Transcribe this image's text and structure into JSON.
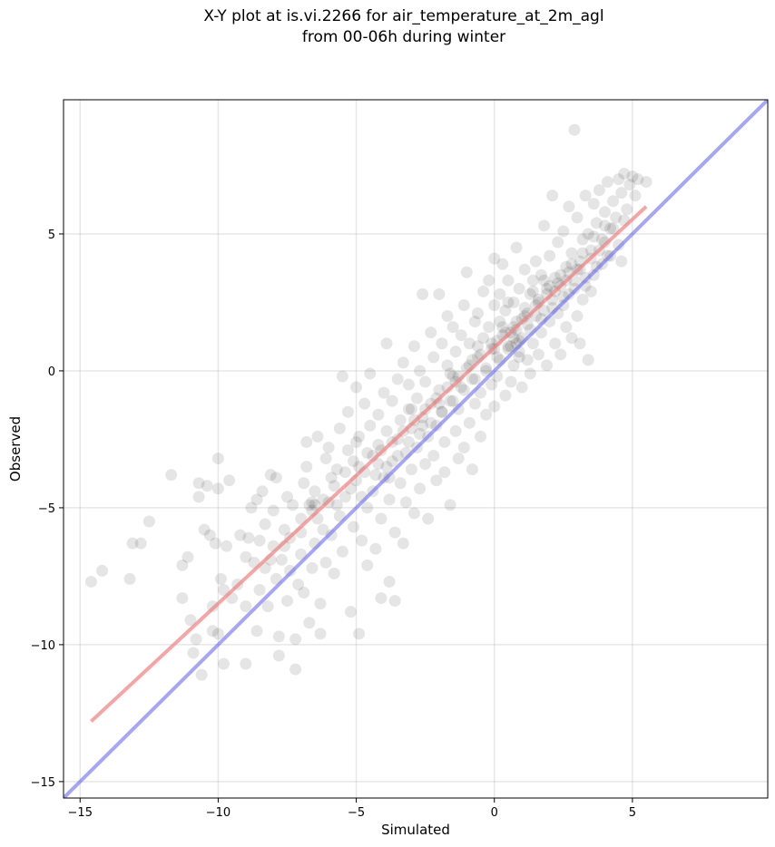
{
  "chart_data": {
    "type": "scatter",
    "title_line1": "X-Y plot at is.vi.2266 for air_temperature_at_2m_agl",
    "title_line2": "from 00-06h during winter",
    "xlabel": "Simulated",
    "ylabel": "Observed",
    "xlim": [
      -15.6,
      9.9
    ],
    "ylim": [
      -15.6,
      9.9
    ],
    "xticks": [
      -15,
      -10,
      -5,
      0,
      5
    ],
    "yticks": [
      -15,
      -10,
      -5,
      0,
      5
    ],
    "xtick_labels": [
      "−15",
      "−10",
      "−5",
      "0",
      "5"
    ],
    "ytick_labels": [
      "−15",
      "−10",
      "−5",
      "0",
      "5"
    ],
    "grid": true,
    "point_color": "#000000",
    "point_alpha": 0.1,
    "fit_line": {
      "color": "#f08080",
      "x": [
        -14.6,
        5.5
      ],
      "y": [
        -12.8,
        6.0
      ]
    },
    "identity_line": {
      "color": "#6a6af0",
      "x": [
        -15.6,
        9.9
      ],
      "y": [
        -15.6,
        9.9
      ]
    },
    "points": [
      [
        -14.6,
        -7.7
      ],
      [
        -14.2,
        -7.3
      ],
      [
        -13.2,
        -7.6
      ],
      [
        -13.1,
        -6.3
      ],
      [
        -12.8,
        -6.3
      ],
      [
        -12.5,
        -5.5
      ],
      [
        -11.7,
        -3.8
      ],
      [
        -11.3,
        -8.3
      ],
      [
        -11.3,
        -7.1
      ],
      [
        -11.1,
        -6.8
      ],
      [
        -11.0,
        -9.1
      ],
      [
        -10.9,
        -10.3
      ],
      [
        -10.8,
        -9.8
      ],
      [
        -10.7,
        -4.1
      ],
      [
        -10.7,
        -4.6
      ],
      [
        -10.6,
        -11.1
      ],
      [
        -10.5,
        -5.8
      ],
      [
        -10.4,
        -4.2
      ],
      [
        -10.3,
        -6.0
      ],
      [
        -10.2,
        -8.6
      ],
      [
        -10.2,
        -9.5
      ],
      [
        -10.1,
        -6.3
      ],
      [
        -10.0,
        -4.3
      ],
      [
        -10.0,
        -9.6
      ],
      [
        -10.0,
        -3.2
      ],
      [
        -9.8,
        -8.0
      ],
      [
        -9.9,
        -7.6
      ],
      [
        -9.8,
        -10.7
      ],
      [
        -9.7,
        -6.4
      ],
      [
        -9.6,
        -4.0
      ],
      [
        -9.5,
        -8.3
      ],
      [
        -9.3,
        -7.8
      ],
      [
        -9.2,
        -6.0
      ],
      [
        -9.0,
        -6.8
      ],
      [
        -9.0,
        -8.6
      ],
      [
        -9.0,
        -10.7
      ],
      [
        -8.9,
        -6.1
      ],
      [
        -8.7,
        -7.0
      ],
      [
        -8.6,
        -4.7
      ],
      [
        -8.6,
        -9.5
      ],
      [
        -8.5,
        -8.0
      ],
      [
        -8.5,
        -6.2
      ],
      [
        -8.4,
        -4.4
      ],
      [
        -8.3,
        -7.2
      ],
      [
        -8.3,
        -5.6
      ],
      [
        -8.2,
        -8.6
      ],
      [
        -8.1,
        -3.8
      ],
      [
        -8.0,
        -6.4
      ],
      [
        -8.0,
        -5.1
      ],
      [
        -7.9,
        -3.9
      ],
      [
        -7.9,
        -7.6
      ],
      [
        -7.8,
        -10.4
      ],
      [
        -7.8,
        -9.7
      ],
      [
        -7.7,
        -6.9
      ],
      [
        -7.6,
        -5.8
      ],
      [
        -7.5,
        -4.6
      ],
      [
        -7.5,
        -8.4
      ],
      [
        -7.4,
        -7.3
      ],
      [
        -7.4,
        -6.1
      ],
      [
        -7.3,
        -4.9
      ],
      [
        -7.2,
        -9.8
      ],
      [
        -7.2,
        -10.9
      ],
      [
        -7.1,
        -7.8
      ],
      [
        -7.0,
        -5.4
      ],
      [
        -7.0,
        -6.7
      ],
      [
        -6.9,
        -4.1
      ],
      [
        -6.9,
        -8.1
      ],
      [
        -6.8,
        -3.5
      ],
      [
        -6.8,
        -2.6
      ],
      [
        -6.7,
        -9.2
      ],
      [
        -6.6,
        -7.2
      ],
      [
        -6.6,
        -5.1
      ],
      [
        -6.5,
        -6.3
      ],
      [
        -6.5,
        -4.4
      ],
      [
        -6.4,
        -2.4
      ],
      [
        -6.3,
        -8.5
      ],
      [
        -6.3,
        -9.6
      ],
      [
        -6.2,
        -5.8
      ],
      [
        -6.1,
        -3.2
      ],
      [
        -6.1,
        -7.0
      ],
      [
        -6.0,
        -4.8
      ],
      [
        -6.0,
        -2.8
      ],
      [
        -5.9,
        -6.0
      ],
      [
        -5.8,
        -4.2
      ],
      [
        -5.8,
        -7.4
      ],
      [
        -5.7,
        -3.6
      ],
      [
        -5.6,
        -2.1
      ],
      [
        -5.6,
        -5.3
      ],
      [
        -5.5,
        -0.2
      ],
      [
        -5.5,
        -6.6
      ],
      [
        -5.4,
        -4.6
      ],
      [
        -5.3,
        -2.9
      ],
      [
        -5.3,
        -1.5
      ],
      [
        -5.2,
        -8.8
      ],
      [
        -5.1,
        -3.3
      ],
      [
        -5.1,
        -5.7
      ],
      [
        -5.0,
        -0.6
      ],
      [
        -5.0,
        -4.0
      ],
      [
        -4.9,
        -2.4
      ],
      [
        -4.9,
        -9.6
      ],
      [
        -4.8,
        -6.2
      ],
      [
        -4.7,
        -1.2
      ],
      [
        -4.7,
        -3.7
      ],
      [
        -4.6,
        -5.0
      ],
      [
        -4.6,
        -7.1
      ],
      [
        -4.5,
        -2.0
      ],
      [
        -4.5,
        -0.1
      ],
      [
        -4.4,
        -4.4
      ],
      [
        -4.4,
        -3.1
      ],
      [
        -4.3,
        -6.5
      ],
      [
        -4.2,
        -1.6
      ],
      [
        -4.2,
        -2.7
      ],
      [
        -4.1,
        -8.3
      ],
      [
        -4.1,
        -5.4
      ],
      [
        -4.0,
        -0.8
      ],
      [
        -4.0,
        -3.9
      ],
      [
        -3.9,
        1.0
      ],
      [
        -3.9,
        -2.2
      ],
      [
        -3.8,
        -4.7
      ],
      [
        -3.8,
        -7.7
      ],
      [
        -3.7,
        -1.1
      ],
      [
        -3.7,
        -3.3
      ],
      [
        -3.6,
        -8.4
      ],
      [
        -3.6,
        -5.9
      ],
      [
        -3.5,
        -0.3
      ],
      [
        -3.5,
        -2.5
      ],
      [
        -3.4,
        -4.1
      ],
      [
        -3.4,
        -1.8
      ],
      [
        -3.3,
        -6.3
      ],
      [
        -3.3,
        0.3
      ],
      [
        -3.2,
        -3.0
      ],
      [
        -3.2,
        -4.8
      ],
      [
        -3.1,
        -1.4
      ],
      [
        -3.1,
        -0.5
      ],
      [
        -3.0,
        -2.1
      ],
      [
        -3.0,
        -3.6
      ],
      [
        -2.9,
        0.9
      ],
      [
        -2.9,
        -5.2
      ],
      [
        -2.8,
        -1.0
      ],
      [
        -2.8,
        -2.8
      ],
      [
        -2.7,
        -4.3
      ],
      [
        -2.7,
        0.0
      ],
      [
        -2.6,
        -1.7
      ],
      [
        -2.6,
        2.8
      ],
      [
        -2.5,
        -3.4
      ],
      [
        -2.5,
        -0.4
      ],
      [
        -2.4,
        -2.4
      ],
      [
        -2.4,
        -5.4
      ],
      [
        -2.3,
        1.4
      ],
      [
        -2.3,
        -1.2
      ],
      [
        -2.2,
        -3.1
      ],
      [
        -2.2,
        0.5
      ],
      [
        -2.1,
        -2.0
      ],
      [
        -2.1,
        -4.0
      ],
      [
        -2.0,
        2.8
      ],
      [
        -2.0,
        -0.7
      ],
      [
        -1.9,
        -1.5
      ],
      [
        -1.9,
        1.0
      ],
      [
        -1.8,
        -3.7
      ],
      [
        -1.8,
        -2.6
      ],
      [
        -1.7,
        0.2
      ],
      [
        -1.7,
        2.0
      ],
      [
        -1.6,
        -1.1
      ],
      [
        -1.6,
        -4.9
      ],
      [
        -1.5,
        -0.2
      ],
      [
        -1.5,
        1.6
      ],
      [
        -1.4,
        -2.2
      ],
      [
        -1.4,
        0.7
      ],
      [
        -1.3,
        -3.2
      ],
      [
        -1.3,
        -1.4
      ],
      [
        -1.2,
        1.3
      ],
      [
        -1.2,
        -0.6
      ],
      [
        -1.1,
        2.4
      ],
      [
        -1.1,
        -2.8
      ],
      [
        -1.0,
        0.1
      ],
      [
        -1.0,
        3.6
      ],
      [
        -0.9,
        -1.9
      ],
      [
        -0.9,
        1.0
      ],
      [
        -0.8,
        -0.3
      ],
      [
        -0.8,
        -3.6
      ],
      [
        -0.7,
        1.8
      ],
      [
        -0.7,
        -1.2
      ],
      [
        -0.6,
        0.5
      ],
      [
        -0.6,
        2.1
      ],
      [
        -0.5,
        -2.4
      ],
      [
        -0.5,
        -0.8
      ],
      [
        -0.4,
        1.2
      ],
      [
        -0.4,
        2.9
      ],
      [
        -0.3,
        0.0
      ],
      [
        -0.3,
        -1.6
      ],
      [
        -0.2,
        1.6
      ],
      [
        -0.2,
        3.3
      ],
      [
        -0.1,
        -0.5
      ],
      [
        -0.1,
        0.8
      ],
      [
        0.0,
        2.4
      ],
      [
        0.0,
        -1.3
      ],
      [
        0.0,
        4.1
      ],
      [
        0.1,
        1.1
      ],
      [
        0.1,
        -0.2
      ],
      [
        0.2,
        2.8
      ],
      [
        0.2,
        0.4
      ],
      [
        0.3,
        3.9
      ],
      [
        0.3,
        1.6
      ],
      [
        0.4,
        -0.9
      ],
      [
        0.4,
        2.2
      ],
      [
        0.5,
        0.9
      ],
      [
        0.5,
        3.3
      ],
      [
        0.6,
        1.4
      ],
      [
        0.6,
        -0.4
      ],
      [
        0.7,
        2.5
      ],
      [
        0.7,
        0.2
      ],
      [
        0.8,
        4.5
      ],
      [
        0.8,
        1.8
      ],
      [
        0.9,
        0.7
      ],
      [
        0.9,
        3.0
      ],
      [
        1.0,
        1.2
      ],
      [
        1.0,
        -0.6
      ],
      [
        1.1,
        2.3
      ],
      [
        1.1,
        3.7
      ],
      [
        1.2,
        0.4
      ],
      [
        1.2,
        1.7
      ],
      [
        1.3,
        2.8
      ],
      [
        1.3,
        -0.1
      ],
      [
        1.4,
        3.3
      ],
      [
        1.4,
        1.0
      ],
      [
        1.5,
        2.0
      ],
      [
        1.5,
        4.0
      ],
      [
        1.6,
        0.6
      ],
      [
        1.6,
        2.6
      ],
      [
        1.7,
        3.5
      ],
      [
        1.7,
        1.4
      ],
      [
        1.8,
        5.3
      ],
      [
        1.8,
        2.2
      ],
      [
        1.9,
        0.2
      ],
      [
        1.9,
        3.0
      ],
      [
        2.0,
        1.8
      ],
      [
        2.0,
        4.2
      ],
      [
        2.1,
        2.6
      ],
      [
        2.1,
        6.4
      ],
      [
        2.2,
        1.0
      ],
      [
        2.2,
        3.4
      ],
      [
        2.3,
        2.1
      ],
      [
        2.3,
        4.7
      ],
      [
        2.4,
        0.6
      ],
      [
        2.4,
        3.1
      ],
      [
        2.5,
        2.4
      ],
      [
        2.5,
        5.1
      ],
      [
        2.6,
        1.6
      ],
      [
        2.6,
        3.8
      ],
      [
        2.7,
        2.8
      ],
      [
        2.7,
        6.0
      ],
      [
        2.8,
        1.2
      ],
      [
        2.8,
        4.3
      ],
      [
        2.9,
        3.3
      ],
      [
        2.9,
        8.8
      ],
      [
        3.0,
        2.0
      ],
      [
        3.0,
        5.6
      ],
      [
        3.1,
        3.7
      ],
      [
        3.1,
        1.0
      ],
      [
        3.2,
        4.8
      ],
      [
        3.2,
        2.6
      ],
      [
        3.3,
        6.4
      ],
      [
        3.3,
        3.1
      ],
      [
        3.4,
        0.4
      ],
      [
        3.4,
        5.0
      ],
      [
        3.5,
        4.1
      ],
      [
        3.5,
        2.9
      ],
      [
        3.6,
        6.1
      ],
      [
        3.6,
        3.5
      ],
      [
        3.7,
        5.4
      ],
      [
        3.8,
        4.4
      ],
      [
        3.8,
        6.6
      ],
      [
        3.9,
        3.9
      ],
      [
        4.0,
        5.8
      ],
      [
        4.0,
        4.7
      ],
      [
        4.1,
        6.9
      ],
      [
        4.2,
        5.2
      ],
      [
        4.2,
        4.2
      ],
      [
        4.3,
        6.2
      ],
      [
        4.4,
        5.6
      ],
      [
        4.5,
        7.0
      ],
      [
        4.6,
        4.0
      ],
      [
        4.6,
        6.5
      ],
      [
        4.7,
        7.2
      ],
      [
        4.8,
        5.9
      ],
      [
        4.9,
        6.8
      ],
      [
        5.0,
        7.1
      ],
      [
        5.1,
        6.4
      ],
      [
        5.2,
        7.0
      ],
      [
        5.5,
        6.9
      ],
      [
        -8.8,
        -5.0
      ],
      [
        -8.1,
        -6.9
      ],
      [
        -7.6,
        -6.4
      ],
      [
        -7.0,
        -5.9
      ],
      [
        -6.7,
        -4.9
      ],
      [
        -6.4,
        -5.4
      ],
      [
        -6.2,
        -4.7
      ],
      [
        -5.9,
        -3.9
      ],
      [
        -5.7,
        -4.9
      ],
      [
        -5.4,
        -3.7
      ],
      [
        -5.2,
        -4.3
      ],
      [
        -4.9,
        -3.5
      ],
      [
        -4.8,
        -4.6
      ],
      [
        -4.6,
        -3.0
      ],
      [
        -4.3,
        -3.8
      ],
      [
        -4.1,
        -2.9
      ],
      [
        -3.9,
        -3.5
      ],
      [
        -3.7,
        -2.6
      ],
      [
        -3.5,
        -3.1
      ],
      [
        -3.3,
        -2.2
      ],
      [
        -3.1,
        -2.6
      ],
      [
        -2.9,
        -1.8
      ],
      [
        -2.7,
        -2.3
      ],
      [
        -2.5,
        -1.4
      ],
      [
        -2.3,
        -1.9
      ],
      [
        -2.1,
        -1.0
      ],
      [
        -1.9,
        -1.5
      ],
      [
        -1.7,
        -0.6
      ],
      [
        -1.5,
        -1.1
      ],
      [
        -1.3,
        -0.2
      ],
      [
        -1.1,
        -0.7
      ],
      [
        -0.9,
        0.2
      ],
      [
        -0.7,
        -0.3
      ],
      [
        -0.5,
        0.6
      ],
      [
        -0.3,
        0.1
      ],
      [
        -0.1,
        1.0
      ],
      [
        0.1,
        0.5
      ],
      [
        0.3,
        1.3
      ],
      [
        0.5,
        0.8
      ],
      [
        0.7,
        1.6
      ],
      [
        0.9,
        1.1
      ],
      [
        1.1,
        2.0
      ],
      [
        1.3,
        1.5
      ],
      [
        1.5,
        2.4
      ],
      [
        1.7,
        1.9
      ],
      [
        1.9,
        2.8
      ],
      [
        2.1,
        2.3
      ],
      [
        2.3,
        3.2
      ],
      [
        2.5,
        2.7
      ],
      [
        2.7,
        3.6
      ],
      [
        2.9,
        3.0
      ],
      [
        3.1,
        4.0
      ],
      [
        3.3,
        3.4
      ],
      [
        3.5,
        4.4
      ],
      [
        3.7,
        3.8
      ],
      [
        3.9,
        4.8
      ],
      [
        4.1,
        4.2
      ],
      [
        4.3,
        5.2
      ],
      [
        4.5,
        4.6
      ],
      [
        4.7,
        5.5
      ],
      [
        -6.6,
        -4.8
      ],
      [
        -6.5,
        -4.9
      ],
      [
        -5.0,
        -2.6
      ],
      [
        -4.2,
        -3.4
      ],
      [
        -3.8,
        -3.9
      ],
      [
        -3.0,
        -1.4
      ],
      [
        -2.6,
        -2.0
      ],
      [
        -1.6,
        -0.1
      ],
      [
        -0.8,
        0.4
      ],
      [
        0.0,
        0.8
      ],
      [
        0.4,
        1.4
      ],
      [
        0.8,
        1.0
      ],
      [
        1.2,
        2.1
      ],
      [
        1.6,
        2.5
      ],
      [
        2.0,
        3.1
      ],
      [
        2.4,
        3.5
      ],
      [
        2.8,
        3.9
      ],
      [
        3.2,
        4.3
      ],
      [
        3.6,
        4.9
      ],
      [
        4.0,
        5.3
      ],
      [
        0.6,
        0.9
      ],
      [
        0.8,
        1.5
      ],
      [
        1.0,
        1.9
      ],
      [
        0.9,
        0.5
      ],
      [
        0.7,
        1.2
      ],
      [
        1.4,
        2.9
      ],
      [
        1.8,
        3.3
      ],
      [
        2.2,
        2.9
      ],
      [
        2.6,
        3.3
      ],
      [
        3.0,
        3.7
      ],
      [
        -2.0,
        -1.2
      ],
      [
        -1.4,
        -0.4
      ],
      [
        -0.6,
        0.9
      ],
      [
        0.2,
        1.8
      ],
      [
        0.5,
        2.5
      ]
    ]
  }
}
